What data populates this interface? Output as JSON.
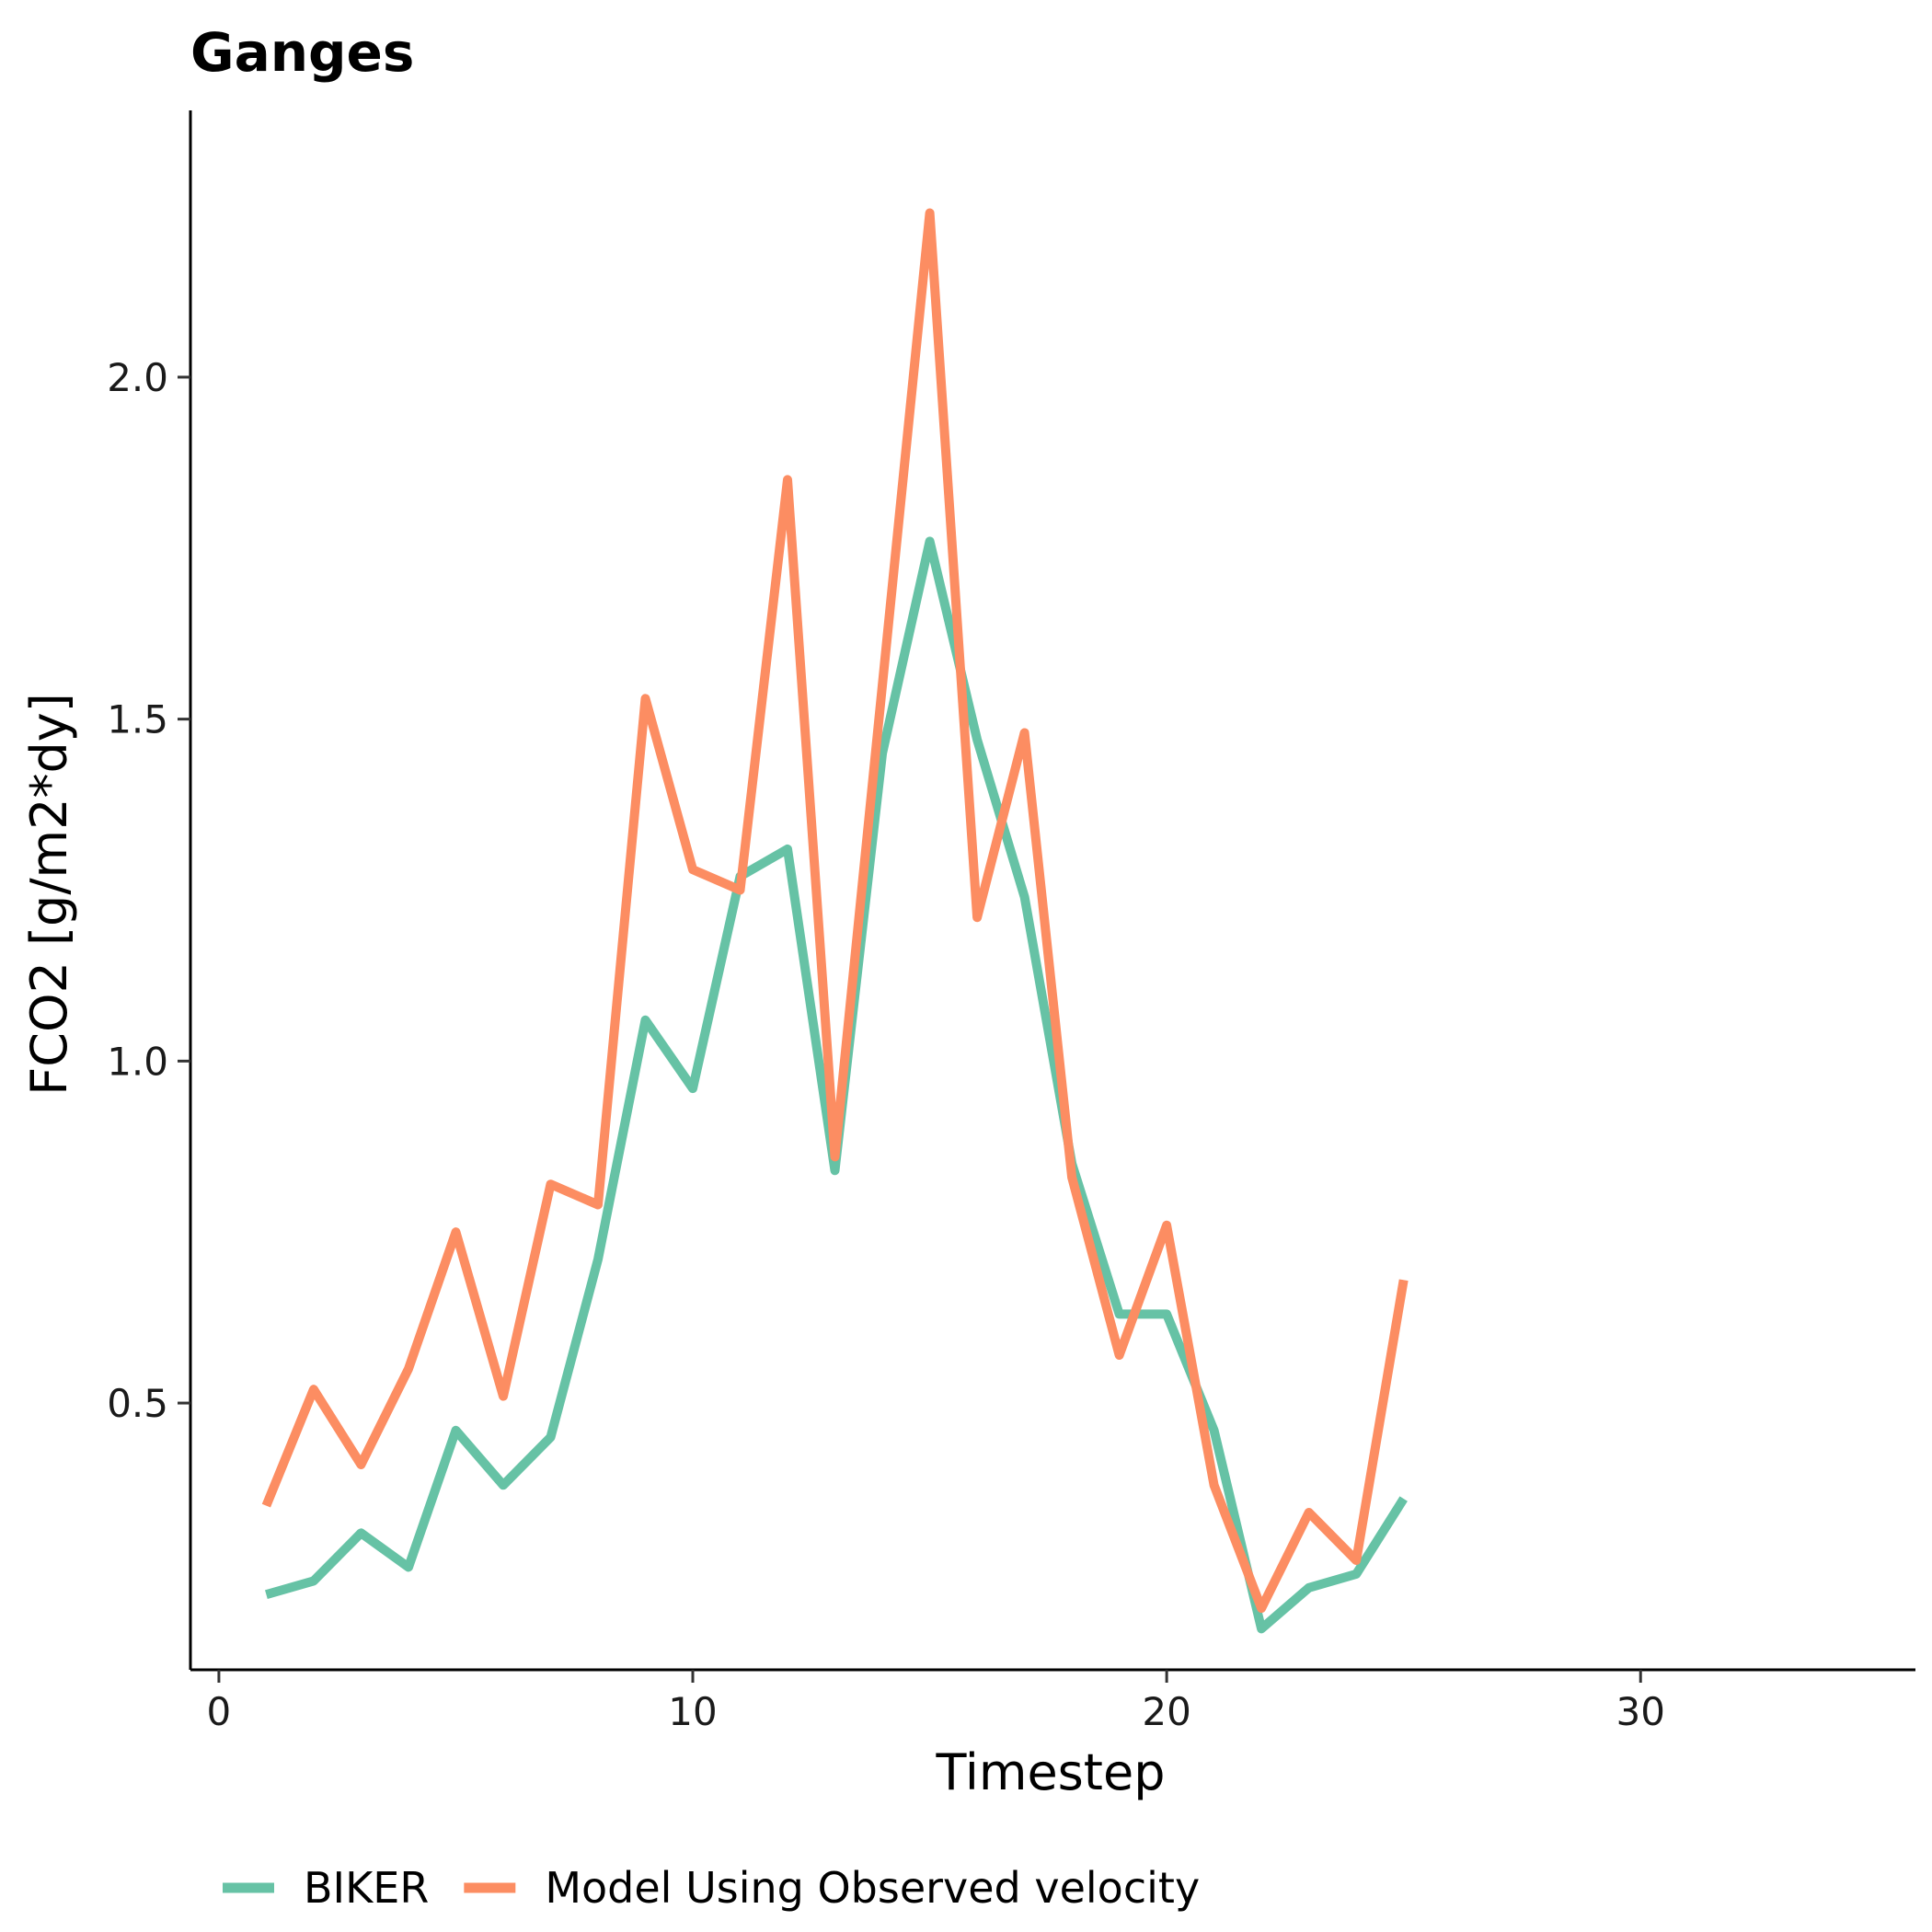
{
  "chart_data": {
    "type": "line",
    "title": "Ganges",
    "xlabel": "Timestep",
    "ylabel": "FCO2 [g/m2*dy]",
    "xlim": [
      -0.6,
      35.8
    ],
    "ylim": [
      0.11,
      2.39
    ],
    "xticks": [
      0,
      10,
      20,
      30
    ],
    "yticks": [
      0.5,
      1.0,
      1.5,
      2.0
    ],
    "xtick_labels": [
      "0",
      "10",
      "20",
      "30"
    ],
    "ytick_labels": [
      "0.5",
      "1.0",
      "1.5",
      "2.0"
    ],
    "grid": false,
    "legend_position": "bottom",
    "series": [
      {
        "name": "BIKER",
        "color": "#66c2a5",
        "x": [
          1,
          2,
          3,
          4,
          5,
          6,
          7,
          8,
          9,
          10,
          11,
          12,
          13,
          14,
          15,
          16,
          17,
          18,
          19,
          20,
          21,
          22,
          23,
          24,
          25
        ],
        "y": [
          0.22,
          0.24,
          0.31,
          0.26,
          0.46,
          0.38,
          0.45,
          0.71,
          1.06,
          0.96,
          1.27,
          1.31,
          0.84,
          1.45,
          1.76,
          1.47,
          1.24,
          0.85,
          0.63,
          0.63,
          0.46,
          0.17,
          0.23,
          0.25,
          0.36
        ]
      },
      {
        "name": "Model Using Observed velocity",
        "color": "#fc8d62",
        "x": [
          1,
          2,
          3,
          4,
          5,
          6,
          7,
          8,
          9,
          10,
          11,
          12,
          13,
          14,
          15,
          16,
          17,
          18,
          19,
          20,
          21,
          22,
          23,
          24,
          25
        ],
        "y": [
          0.35,
          0.52,
          0.41,
          0.55,
          0.75,
          0.51,
          0.82,
          0.79,
          1.53,
          1.28,
          1.25,
          1.85,
          0.86,
          1.55,
          2.24,
          1.21,
          1.48,
          0.83,
          0.57,
          0.76,
          0.38,
          0.2,
          0.34,
          0.27,
          0.68
        ]
      }
    ]
  }
}
